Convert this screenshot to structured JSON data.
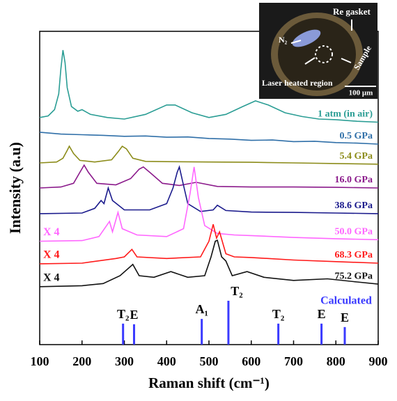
{
  "chart_data": {
    "type": "line",
    "xlabel": "Raman shift (cm⁻¹)",
    "ylabel": "Intensity (a.u)",
    "xlim": [
      100,
      900
    ],
    "xticks": [
      100,
      200,
      300,
      400,
      500,
      600,
      700,
      800,
      900
    ],
    "ylim": [
      0,
      100
    ],
    "series": [
      {
        "name": "1 atm (in air)",
        "color": "#2a9d94",
        "x": [
          100,
          120,
          135,
          145,
          150,
          155,
          160,
          165,
          175,
          190,
          200,
          220,
          260,
          300,
          350,
          400,
          420,
          460,
          500,
          540,
          580,
          610,
          640,
          680,
          720,
          760,
          800,
          850,
          900
        ],
        "values": [
          72.5,
          73,
          75,
          80,
          88,
          94,
          90,
          82,
          76,
          74.5,
          75,
          73.5,
          72.5,
          72,
          73.5,
          76.5,
          76.5,
          74,
          72.5,
          73.5,
          76,
          77.8,
          76.5,
          74,
          72.8,
          72,
          71.8,
          71.3,
          71
        ]
      },
      {
        "name": "0.5 GPa",
        "color": "#2f6fa8",
        "x": [
          100,
          150,
          200,
          250,
          300,
          350,
          400,
          450,
          500,
          550,
          600,
          650,
          700,
          750,
          800,
          850,
          900
        ],
        "values": [
          67.8,
          67.2,
          67,
          66.8,
          66.5,
          66.6,
          66.2,
          66.3,
          65.8,
          65.6,
          65.2,
          65.3,
          64.8,
          64.9,
          64.5,
          64.3,
          64
        ]
      },
      {
        "name": "5.4 GPa",
        "color": "#8c8c1a",
        "x": [
          100,
          140,
          155,
          165,
          170,
          180,
          195,
          230,
          270,
          285,
          295,
          305,
          320,
          350,
          400,
          500,
          600,
          700,
          800,
          900
        ],
        "values": [
          58,
          58.3,
          59.5,
          62,
          63.3,
          61,
          58.8,
          58.3,
          59,
          61.5,
          63.3,
          62.5,
          59.5,
          58.5,
          58.4,
          58.3,
          58.2,
          58,
          57.8,
          57.6
        ]
      },
      {
        "name": "16.0 GPa",
        "color": "#8b1a8b",
        "x": [
          100,
          150,
          180,
          195,
          205,
          215,
          235,
          280,
          315,
          335,
          345,
          360,
          390,
          430,
          470,
          520,
          600,
          700,
          800,
          900
        ],
        "values": [
          50,
          50.3,
          51.5,
          55,
          57.3,
          55,
          51.5,
          51,
          53,
          56,
          56.7,
          55,
          51.5,
          50.8,
          51.8,
          50.5,
          50.3,
          50.3,
          50.2,
          50
        ]
      },
      {
        "name": "38.6 GPa",
        "color": "#1a1a8c",
        "x": [
          100,
          200,
          230,
          245,
          252,
          262,
          272,
          300,
          360,
          400,
          415,
          425,
          430,
          438,
          450,
          480,
          510,
          520,
          540,
          600,
          700,
          800,
          900
        ],
        "values": [
          41.8,
          42,
          43.5,
          46,
          45,
          50,
          46,
          43,
          43,
          45,
          50,
          55,
          56.7,
          52,
          45,
          42.5,
          43,
          44.5,
          42.8,
          42.3,
          42.2,
          42,
          41.8
        ]
      },
      {
        "name": "50.0 GPa",
        "color": "#ff66ff",
        "scale_label": "X 4",
        "x": [
          100,
          200,
          240,
          265,
          272,
          285,
          295,
          330,
          400,
          440,
          455,
          465,
          475,
          490,
          520,
          560,
          600,
          700,
          800,
          900
        ],
        "values": [
          33,
          33.2,
          34.5,
          39.3,
          36,
          42.2,
          37,
          35,
          34.5,
          37,
          48,
          56.7,
          47,
          38,
          35.5,
          35,
          34.8,
          34.2,
          33.8,
          33.5
        ]
      },
      {
        "name": "68.3 GPa",
        "color": "#ff1a1a",
        "scale_label": "X 4",
        "x": [
          100,
          200,
          280,
          300,
          318,
          330,
          400,
          480,
          500,
          510,
          518,
          525,
          540,
          560,
          600,
          700,
          800,
          900
        ],
        "values": [
          25.8,
          26,
          27.5,
          28,
          30.4,
          28,
          27.5,
          28,
          33,
          38.4,
          34,
          36,
          29,
          28,
          27.8,
          27,
          26.5,
          26
        ]
      },
      {
        "name": "75.2 GPa",
        "color": "#111111",
        "scale_label": "X 4",
        "x": [
          100,
          200,
          250,
          290,
          320,
          335,
          370,
          410,
          450,
          490,
          505,
          515,
          520,
          530,
          540,
          555,
          590,
          630,
          700,
          780,
          850,
          900
        ],
        "values": [
          18.5,
          18.8,
          19.5,
          22,
          25.6,
          22,
          21.5,
          23.3,
          21.5,
          22,
          28,
          33,
          33.3,
          28,
          26.7,
          22,
          23.3,
          21.5,
          20.5,
          21,
          20,
          19.3
        ]
      }
    ],
    "calculated": {
      "name": "Calculated",
      "color": "#3a3aff",
      "x": [
        297,
        323,
        483,
        546,
        664,
        766,
        821
      ],
      "labels": [
        "T₂",
        "E",
        "A₁",
        "T₂",
        "T₂",
        "E",
        "E"
      ],
      "values": [
        6.7,
        6.5,
        8.2,
        14,
        6.7,
        6.7,
        5.6
      ]
    },
    "inset": {
      "labels": [
        "Re gasket",
        "N₂",
        "Laser heated region",
        "Sample",
        "100 μm"
      ]
    }
  }
}
